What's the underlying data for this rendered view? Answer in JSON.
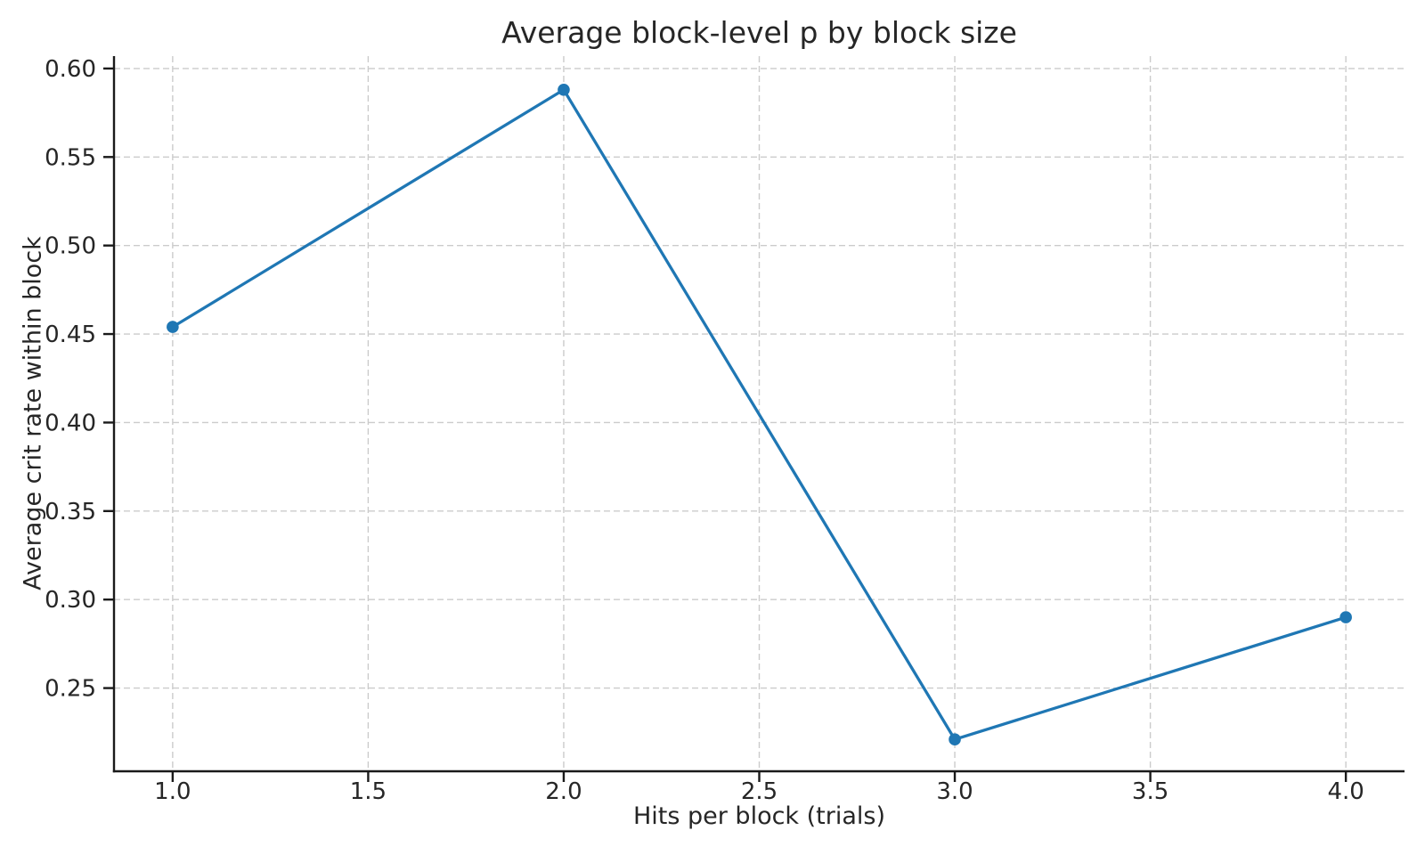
{
  "chart_data": {
    "type": "line",
    "title": "Average block-level p by block size",
    "xlabel": "Hits per block (trials)",
    "ylabel": "Average crit rate within block",
    "x": [
      1,
      2,
      3,
      4
    ],
    "y": [
      0.454,
      0.588,
      0.221,
      0.29
    ],
    "series_name": "Average crit rate within block",
    "xlim": [
      0.85,
      4.15
    ],
    "ylim": [
      0.203,
      0.607
    ],
    "xticks": [
      1.0,
      1.5,
      2.0,
      2.5,
      3.0,
      3.5,
      4.0
    ],
    "xtick_labels": [
      "1.0",
      "1.5",
      "2.0",
      "2.5",
      "3.0",
      "3.5",
      "4.0"
    ],
    "yticks": [
      0.25,
      0.3,
      0.35,
      0.4,
      0.45,
      0.5,
      0.55,
      0.6
    ],
    "ytick_labels": [
      "0.25",
      "0.30",
      "0.35",
      "0.40",
      "0.45",
      "0.50",
      "0.55",
      "0.60"
    ],
    "grid": true,
    "grid_style": "dashed",
    "legend": "none",
    "marker": "circle",
    "colors": {
      "line": "#1f77b4",
      "grid": "#cbcbcb",
      "axis": "#1a1a1a",
      "text": "#262626",
      "background": "#ffffff"
    }
  }
}
